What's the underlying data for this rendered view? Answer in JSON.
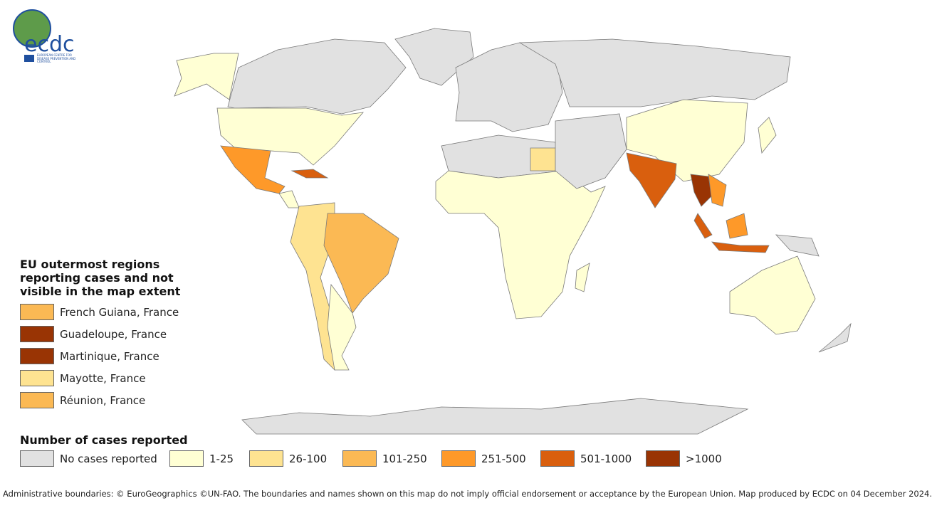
{
  "logo": {
    "acronym": "ecdc",
    "agency": "EUROPEAN CENTRE FOR DISEASE PREVENTION AND CONTROL"
  },
  "outermost_legend": {
    "title_lines": [
      "EU outermost regions",
      "reporting cases and not",
      "visible in the map extent"
    ],
    "items": [
      {
        "label": "French Guiana, France",
        "color": "#fbb954"
      },
      {
        "label": "Guadeloupe, France",
        "color": "#993404"
      },
      {
        "label": "Martinique, France",
        "color": "#993404"
      },
      {
        "label": "Mayotte, France",
        "color": "#fee391"
      },
      {
        "label": "Réunion, France",
        "color": "#fbb954"
      }
    ]
  },
  "cases_legend": {
    "title": "Number of cases reported",
    "items": [
      {
        "label": "No cases reported",
        "color": "#e1e1e1"
      },
      {
        "label": "1-25",
        "color": "#ffffd4"
      },
      {
        "label": "26-100",
        "color": "#fee391"
      },
      {
        "label": "101-250",
        "color": "#fbb954"
      },
      {
        "label": "251-500",
        "color": "#fe9929"
      },
      {
        "label": "501-1000",
        "color": "#d95f0e"
      },
      {
        "label": ">1000",
        "color": "#993404"
      }
    ]
  },
  "footer": "Administrative boundaries: © EuroGeographics ©UN-FAO. The boundaries and names shown on this map do not imply official endorsement or acceptance by the European Union. Map produced by ECDC on 04 December 2024."
}
